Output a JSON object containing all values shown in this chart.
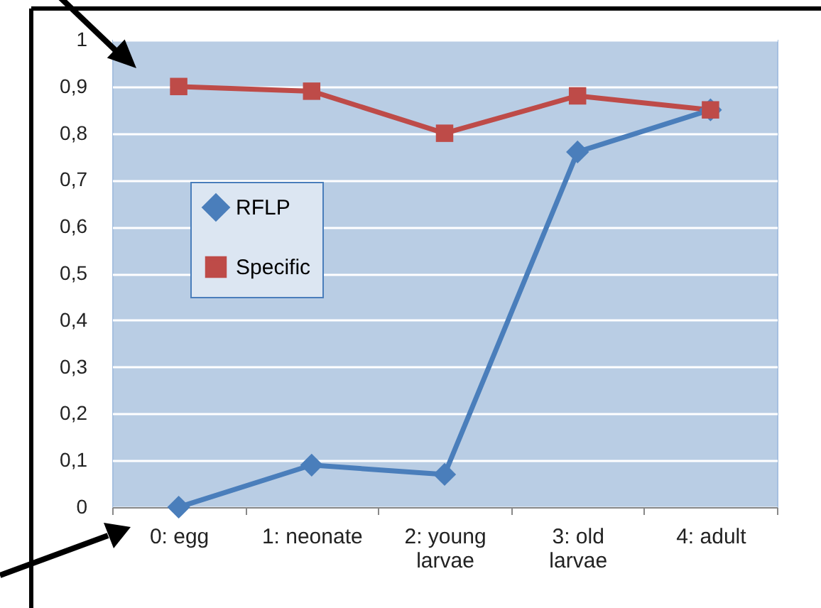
{
  "chart_data": {
    "type": "line",
    "categories": [
      "0: egg",
      "1: neonate",
      "2: young larvae",
      "3: old larvae",
      "4: adult"
    ],
    "series": [
      {
        "name": "RFLP",
        "color": "#4a7ebb",
        "marker": "diamond",
        "values": [
          0,
          0.09,
          0.07,
          0.76,
          0.85
        ]
      },
      {
        "name": "Specific",
        "color": "#be4b48",
        "marker": "square",
        "values": [
          0.9,
          0.89,
          0.8,
          0.88,
          0.85
        ]
      }
    ],
    "ylim": [
      0,
      1
    ],
    "yticks": [
      0,
      {
        "value": 0.1,
        "label": "0,1"
      },
      {
        "value": 0.2,
        "label": "0,2"
      },
      {
        "value": 0.3,
        "label": "0,3"
      },
      {
        "value": 0.4,
        "label": "0,4"
      },
      {
        "value": 0.5,
        "label": "0,5"
      },
      {
        "value": 0.6,
        "label": "0,6"
      },
      {
        "value": 0.7,
        "label": "0,7"
      },
      {
        "value": 0.8,
        "label": "0,8"
      },
      {
        "value": 0.9,
        "label": "0,9"
      },
      1
    ],
    "grid": "y",
    "legend": "left",
    "line_style": "solid"
  }
}
